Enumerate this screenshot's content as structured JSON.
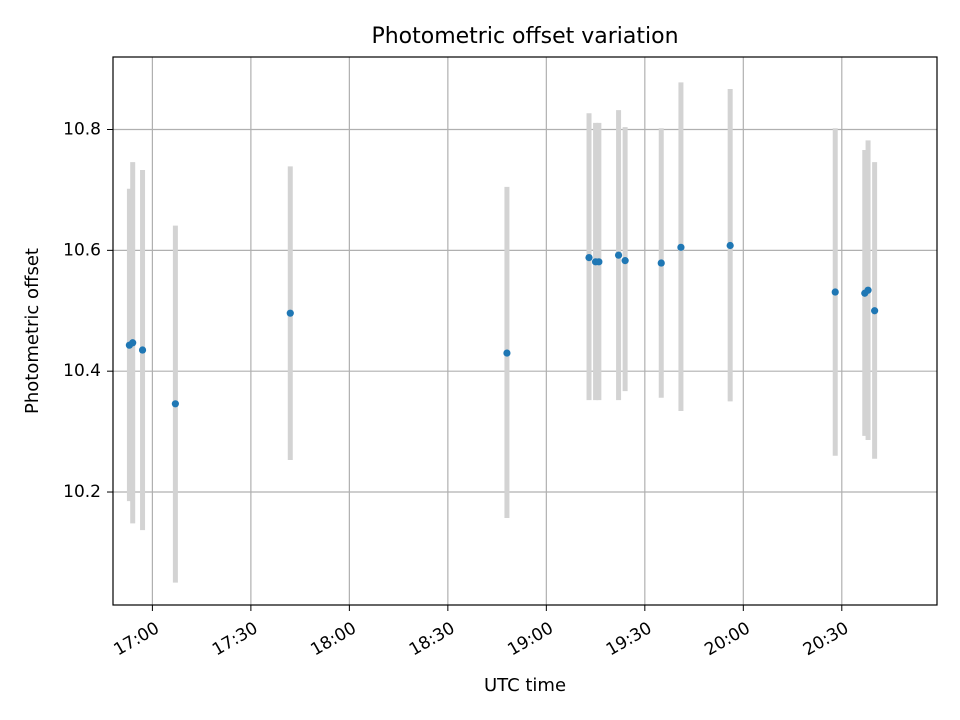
{
  "chart_data": {
    "type": "scatter",
    "title": "Photometric offset variation",
    "xlabel": "UTC time",
    "ylabel": "Photometric offset",
    "x_tick_labels": [
      "17:00",
      "17:30",
      "18:00",
      "18:30",
      "19:00",
      "19:30",
      "20:00",
      "20:30"
    ],
    "y_tick_labels": [
      "10.2",
      "10.4",
      "10.6",
      "10.8"
    ],
    "xlim": [
      "16:48",
      "20:59"
    ],
    "ylim": [
      10.013,
      10.92
    ],
    "grid": true,
    "series": [
      {
        "marker_color": "#1f77b4",
        "errorbar_color": "#d3d3d3",
        "points": [
          {
            "x": "16:53",
            "y": 10.443,
            "err_low": 10.185,
            "err_high": 10.702
          },
          {
            "x": "16:54",
            "y": 10.447,
            "err_low": 10.148,
            "err_high": 10.746
          },
          {
            "x": "16:57",
            "y": 10.435,
            "err_low": 10.137,
            "err_high": 10.733
          },
          {
            "x": "17:07",
            "y": 10.346,
            "err_low": 10.05,
            "err_high": 10.641
          },
          {
            "x": "17:42",
            "y": 10.496,
            "err_low": 10.253,
            "err_high": 10.739
          },
          {
            "x": "18:48",
            "y": 10.43,
            "err_low": 10.157,
            "err_high": 10.705
          },
          {
            "x": "19:13",
            "y": 10.588,
            "err_low": 10.352,
            "err_high": 10.827
          },
          {
            "x": "19:15",
            "y": 10.581,
            "err_low": 10.352,
            "err_high": 10.811
          },
          {
            "x": "19:16",
            "y": 10.581,
            "err_low": 10.352,
            "err_high": 10.811
          },
          {
            "x": "19:22",
            "y": 10.592,
            "err_low": 10.352,
            "err_high": 10.832
          },
          {
            "x": "19:24",
            "y": 10.583,
            "err_low": 10.367,
            "err_high": 10.804
          },
          {
            "x": "19:35",
            "y": 10.579,
            "err_low": 10.356,
            "err_high": 10.802
          },
          {
            "x": "19:41",
            "y": 10.605,
            "err_low": 10.334,
            "err_high": 10.878
          },
          {
            "x": "19:56",
            "y": 10.608,
            "err_low": 10.35,
            "err_high": 10.867
          },
          {
            "x": "20:28",
            "y": 10.531,
            "err_low": 10.26,
            "err_high": 10.802
          },
          {
            "x": "20:37",
            "y": 10.529,
            "err_low": 10.293,
            "err_high": 10.766
          },
          {
            "x": "20:38",
            "y": 10.534,
            "err_low": 10.286,
            "err_high": 10.782
          },
          {
            "x": "20:40",
            "y": 10.5,
            "err_low": 10.255,
            "err_high": 10.746
          }
        ]
      }
    ]
  }
}
